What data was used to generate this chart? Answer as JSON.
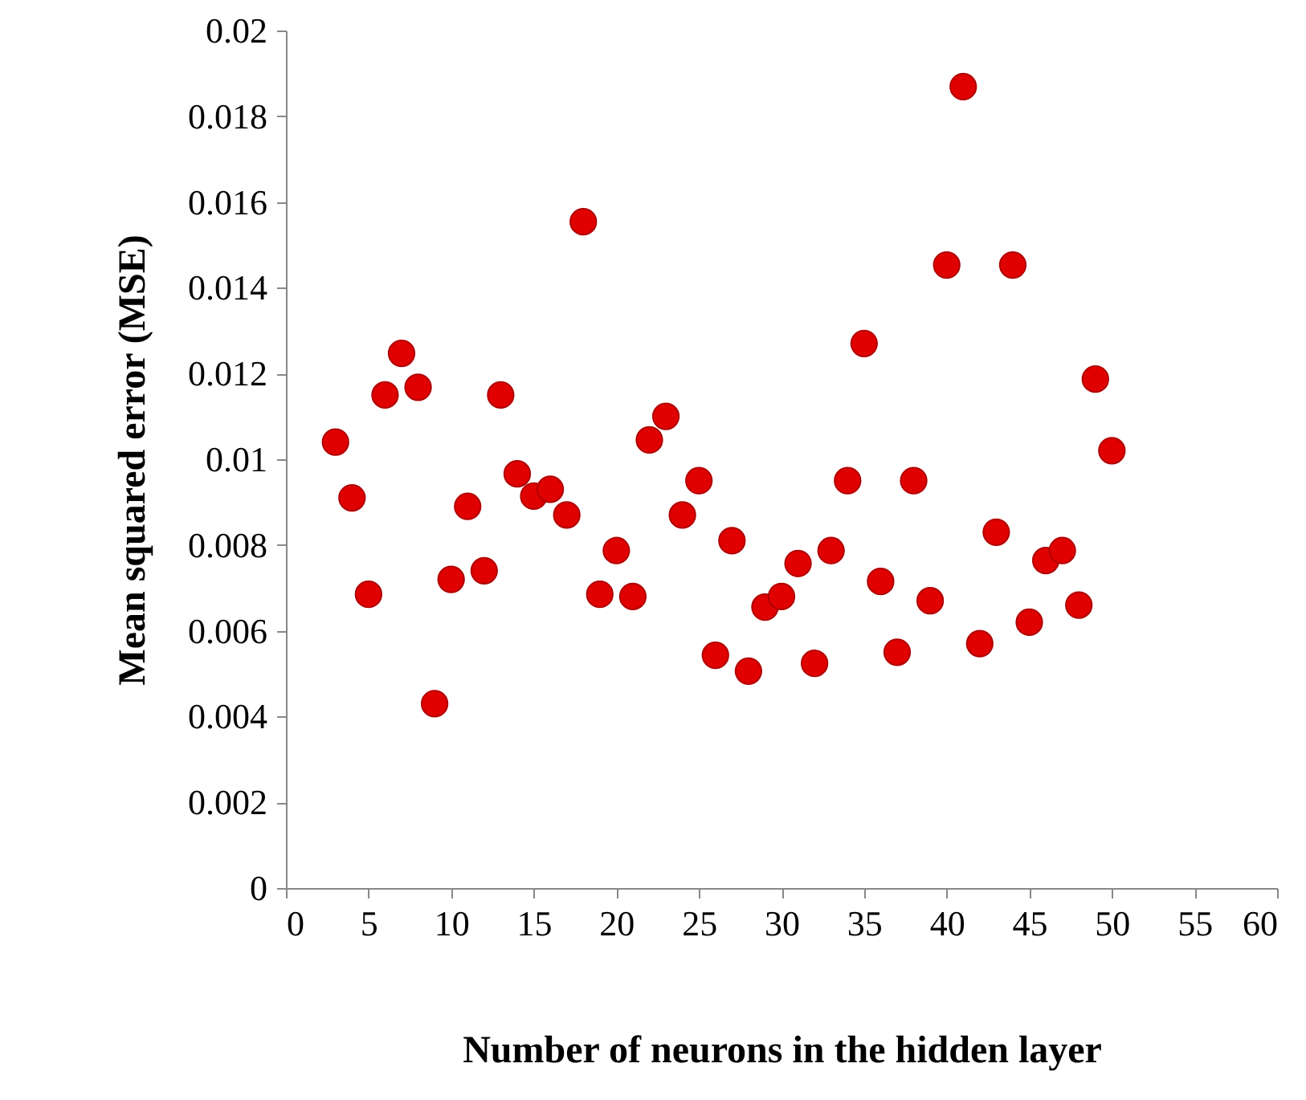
{
  "chart_data": {
    "type": "scatter",
    "xlabel": "Number of neurons in the hidden layer",
    "ylabel": "Mean squared error (MSE)",
    "x": [
      3,
      4,
      5,
      6,
      7,
      8,
      9,
      10,
      11,
      12,
      13,
      14,
      15,
      16,
      17,
      18,
      19,
      20,
      21,
      22,
      23,
      24,
      25,
      26,
      27,
      28,
      29,
      30,
      31,
      32,
      33,
      34,
      35,
      36,
      37,
      38,
      39,
      40,
      41,
      42,
      43,
      44,
      45,
      46,
      47,
      48,
      49,
      50
    ],
    "series": [
      {
        "color": "#e00000",
        "values": [
          0.0104,
          0.0091,
          0.00685,
          0.0115,
          0.01247,
          0.01168,
          0.0043,
          0.0072,
          0.0089,
          0.0074,
          0.0115,
          0.00966,
          0.00914,
          0.0093,
          0.0087,
          0.01554,
          0.00685,
          0.00787,
          0.0068,
          0.01045,
          0.011,
          0.0087,
          0.0095,
          0.00543,
          0.0081,
          0.00506,
          0.00655,
          0.0068,
          0.00757,
          0.00524,
          0.00787,
          0.0095,
          0.0127,
          0.00715,
          0.0055,
          0.0095,
          0.0067,
          0.01453,
          0.01869,
          0.0057,
          0.0083,
          0.01453,
          0.0062,
          0.00764,
          0.00787,
          0.0066,
          0.01187,
          0.0102
        ]
      }
    ],
    "xlim": [
      0,
      60
    ],
    "xticks": [
      0,
      5,
      10,
      15,
      20,
      25,
      30,
      35,
      40,
      45,
      50,
      55,
      60
    ],
    "ylim": [
      0,
      0.02
    ],
    "yticks": [
      0,
      0.002,
      0.004,
      0.006,
      0.008,
      0.01,
      0.012,
      0.014,
      0.016,
      0.018,
      0.02
    ],
    "grid": false,
    "marker": "circle"
  }
}
